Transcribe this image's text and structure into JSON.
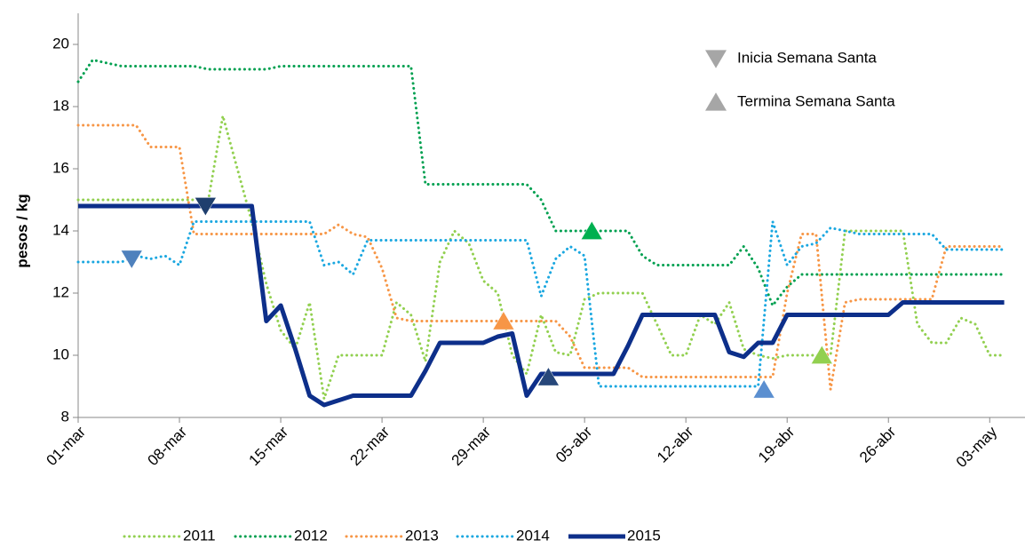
{
  "chart_data": {
    "type": "line",
    "y_label": "pesos / kg",
    "categories": [
      "01-mar",
      null,
      null,
      null,
      null,
      null,
      null,
      "08-mar",
      null,
      null,
      null,
      null,
      null,
      null,
      "15-mar",
      null,
      null,
      null,
      null,
      null,
      null,
      "22-mar",
      null,
      null,
      null,
      null,
      null,
      null,
      "29-mar",
      null,
      null,
      null,
      null,
      null,
      null,
      "05-abr",
      null,
      null,
      null,
      null,
      null,
      null,
      "12-abr",
      null,
      null,
      null,
      null,
      null,
      null,
      "19-abr",
      null,
      null,
      null,
      null,
      null,
      null,
      "26-abr",
      null,
      null,
      null,
      null,
      null,
      null,
      "03-may",
      null
    ],
    "ylim": [
      8,
      20
    ],
    "yticks": [
      8,
      10,
      12,
      14,
      16,
      18,
      20
    ],
    "series": [
      {
        "name": "2011",
        "color": "#92d050",
        "style": "dotted",
        "values": [
          15,
          15,
          15,
          15,
          15,
          15,
          15,
          15,
          15,
          15,
          17.7,
          16,
          14.3,
          12.3,
          10.8,
          10.2,
          11.7,
          8.6,
          10,
          10,
          10,
          10,
          11.7,
          11.3,
          9.8,
          13,
          14,
          13.6,
          12.4,
          12,
          10,
          9.4,
          11.3,
          10.1,
          10,
          11.8,
          12,
          12,
          12,
          12,
          11,
          10,
          10,
          11.3,
          11,
          11.7,
          10.2,
          10,
          9.9,
          10,
          10,
          10,
          10,
          14,
          14,
          14,
          14,
          14,
          11,
          10.4,
          10.4,
          11.2,
          11,
          10,
          10
        ]
      },
      {
        "name": "2012",
        "color": "#00a050",
        "style": "dotted",
        "values": [
          18.8,
          19.5,
          19.4,
          19.3,
          19.3,
          19.3,
          19.3,
          19.3,
          19.3,
          19.2,
          19.2,
          19.2,
          19.2,
          19.2,
          19.3,
          19.3,
          19.3,
          19.3,
          19.3,
          19.3,
          19.3,
          19.3,
          19.3,
          19.3,
          15.5,
          15.5,
          15.5,
          15.5,
          15.5,
          15.5,
          15.5,
          15.5,
          15.0,
          14.0,
          14.0,
          14.0,
          14.0,
          14.0,
          14.0,
          13.2,
          12.9,
          12.9,
          12.9,
          12.9,
          12.9,
          12.9,
          13.5,
          12.8,
          11.6,
          12.2,
          12.6,
          12.6,
          12.6,
          12.6,
          12.6,
          12.6,
          12.6,
          12.6,
          12.6,
          12.6,
          12.6,
          12.6,
          12.6,
          12.6,
          12.6
        ]
      },
      {
        "name": "2013",
        "color": "#f79646",
        "style": "dotted",
        "values": [
          17.4,
          17.4,
          17.4,
          17.4,
          17.4,
          16.7,
          16.7,
          16.7,
          13.9,
          13.9,
          13.9,
          13.9,
          13.9,
          13.9,
          13.9,
          13.9,
          13.9,
          13.9,
          14.2,
          13.9,
          13.8,
          12.8,
          11.2,
          11.1,
          11.1,
          11.1,
          11.1,
          11.1,
          11.1,
          11.1,
          11.1,
          11.1,
          11.1,
          11.1,
          10.6,
          9.6,
          9.6,
          9.6,
          9.6,
          9.3,
          9.3,
          9.3,
          9.3,
          9.3,
          9.3,
          9.3,
          9.3,
          9.3,
          9.3,
          12,
          13.9,
          13.9,
          8.9,
          11.7,
          11.8,
          11.8,
          11.8,
          11.8,
          11.8,
          11.8,
          13.5,
          13.5,
          13.5,
          13.5,
          13.5
        ]
      },
      {
        "name": "2014",
        "color": "#1aa7e0",
        "style": "dotted",
        "values": [
          13.0,
          13.0,
          13.0,
          13.0,
          13.2,
          13.1,
          13.2,
          12.9,
          14.3,
          14.3,
          14.3,
          14.3,
          14.3,
          14.3,
          14.3,
          14.3,
          14.3,
          12.9,
          13.0,
          12.6,
          13.7,
          13.7,
          13.7,
          13.7,
          13.7,
          13.7,
          13.7,
          13.7,
          13.7,
          13.7,
          13.7,
          13.7,
          11.9,
          13.1,
          13.5,
          13.2,
          9.0,
          9.0,
          9.0,
          9.0,
          9.0,
          9.0,
          9.0,
          9.0,
          9.0,
          9.0,
          9.0,
          9.0,
          14.3,
          12.9,
          13.5,
          13.6,
          14.1,
          14.0,
          13.9,
          13.9,
          13.9,
          13.9,
          13.9,
          13.9,
          13.4,
          13.4,
          13.4,
          13.4,
          13.4
        ]
      },
      {
        "name": "2015",
        "color": "#0d2f8a",
        "style": "solid",
        "values": [
          14.8,
          14.8,
          14.8,
          14.8,
          14.8,
          14.8,
          14.8,
          14.8,
          14.8,
          14.8,
          14.8,
          14.8,
          14.8,
          11.1,
          11.6,
          10.2,
          8.7,
          8.4,
          8.55,
          8.7,
          8.7,
          8.7,
          8.7,
          8.7,
          9.5,
          10.4,
          10.4,
          10.4,
          10.4,
          10.6,
          10.7,
          8.7,
          9.4,
          9.4,
          9.4,
          9.4,
          9.4,
          9.4,
          10.3,
          11.3,
          11.3,
          11.3,
          11.3,
          11.3,
          11.3,
          10.1,
          9.95,
          10.4,
          10.4,
          11.3,
          11.3,
          11.3,
          11.3,
          11.3,
          11.3,
          11.3,
          11.3,
          11.7,
          11.7,
          11.7,
          11.7,
          11.7,
          11.7,
          11.7,
          11.7
        ]
      }
    ],
    "marker_legend": [
      {
        "label": "Inicia Semana Santa",
        "shape": "down",
        "color": "#a6a6a6"
      },
      {
        "label": "Termina Semana Santa",
        "shape": "up",
        "color": "#a6a6a6"
      }
    ],
    "markers": [
      {
        "shape": "down",
        "x": 3.7,
        "value": 13.1,
        "color": "#4f81bd"
      },
      {
        "shape": "down",
        "x": 8.8,
        "value": 14.8,
        "color": "#1f3f6e"
      },
      {
        "shape": "up",
        "x": 29.4,
        "value": 11.1,
        "color": "#f79646"
      },
      {
        "shape": "up",
        "x": 32.5,
        "value": 9.3,
        "color": "#27477a"
      },
      {
        "shape": "up",
        "x": 35.5,
        "value": 14.0,
        "color": "#00b050"
      },
      {
        "shape": "up",
        "x": 47.4,
        "value": 8.9,
        "color": "#5b8fd0"
      },
      {
        "shape": "up",
        "x": 51.4,
        "value": 10.0,
        "color": "#92d050"
      }
    ]
  }
}
